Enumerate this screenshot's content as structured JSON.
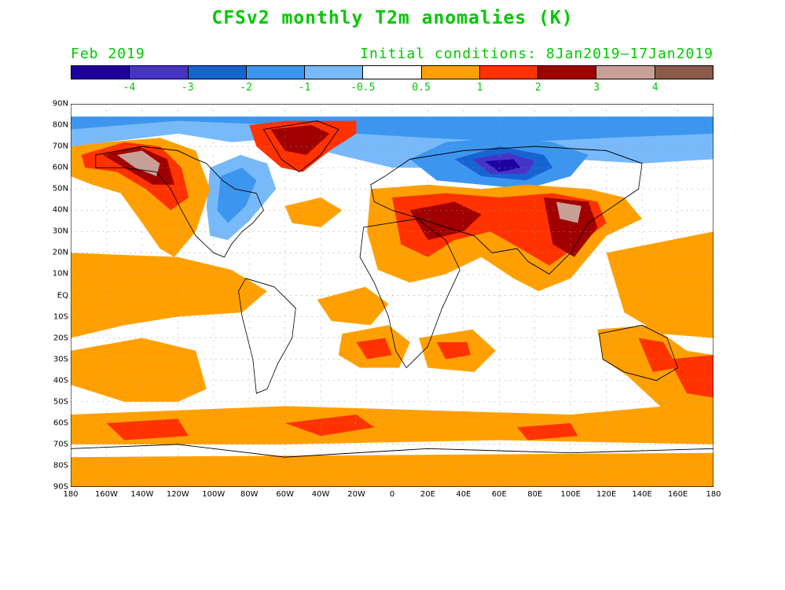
{
  "title": "CFSv2 monthly T2m anomalies (K)",
  "valid_month": "Feb 2019",
  "initial_conditions": "Initial conditions: 8Jan2019–17Jan2019",
  "text_color": "#00c800",
  "colorbar": {
    "colors": [
      "#1e00a0",
      "#4634c8",
      "#1664d2",
      "#3c96f0",
      "#78b9fa",
      "#ffffff",
      "#ffa000",
      "#ff3200",
      "#a00000",
      "#c8a096",
      "#8c5a4b"
    ],
    "labels": [
      "-4",
      "-3",
      "-2",
      "-1",
      "-0.5",
      "0.5",
      "1",
      "2",
      "3",
      "4"
    ]
  },
  "map": {
    "lat_labels": [
      "90N",
      "80N",
      "70N",
      "60N",
      "50N",
      "40N",
      "30N",
      "20N",
      "10N",
      "EQ",
      "10S",
      "20S",
      "30S",
      "40S",
      "50S",
      "60S",
      "70S",
      "80S",
      "90S"
    ],
    "lon_labels": [
      "180",
      "160W",
      "140W",
      "120W",
      "100W",
      "80W",
      "60W",
      "40W",
      "20W",
      "0",
      "20E",
      "40E",
      "60E",
      "80E",
      "100E",
      "120E",
      "140E",
      "160E",
      "180"
    ]
  }
}
